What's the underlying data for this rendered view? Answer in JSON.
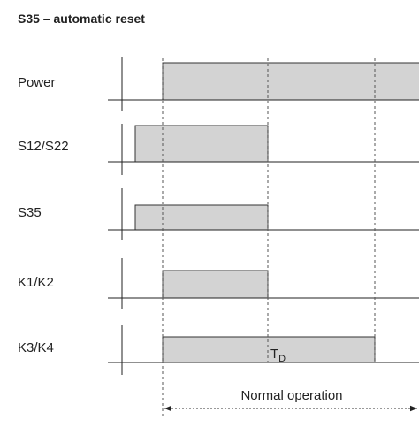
{
  "title": "S35 – automatic reset",
  "signals": [
    {
      "label": "Power"
    },
    {
      "label": "S12/S22"
    },
    {
      "label": "S35"
    },
    {
      "label": "K1/K2"
    },
    {
      "label": "K3/K4",
      "annotation": {
        "main": "T",
        "sub": "D"
      }
    }
  ],
  "span_label": "Normal operation"
}
